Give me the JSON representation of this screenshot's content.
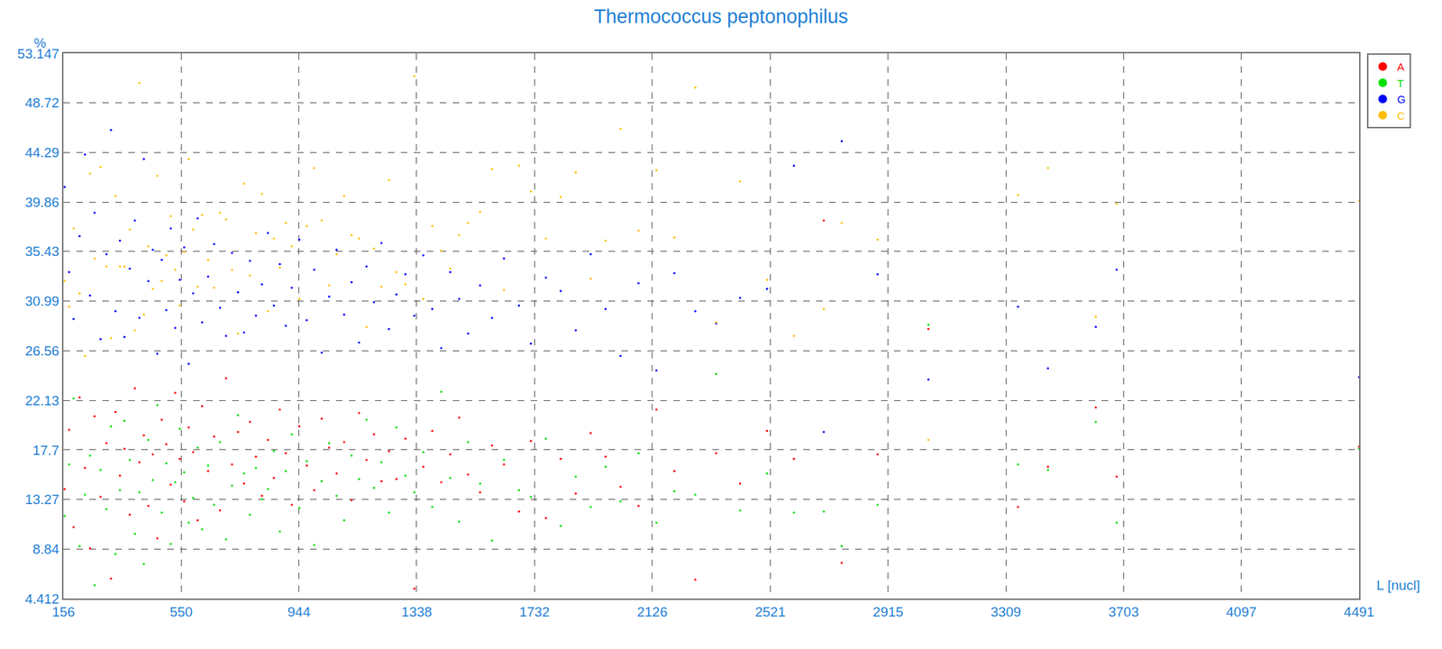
{
  "chart_data": {
    "type": "scatter",
    "title": "Thermococcus peptonophilus",
    "x_label": "L [nucl]",
    "y_label": "%",
    "xlim": [
      156,
      4491
    ],
    "ylim": [
      4.412,
      53.147
    ],
    "xticks": [
      156,
      550,
      944,
      1338,
      1732,
      2126,
      2521,
      2915,
      3309,
      3703,
      4097,
      4491
    ],
    "yticks": [
      4.412,
      8.84,
      13.27,
      17.7,
      22.13,
      26.56,
      30.99,
      35.43,
      39.86,
      44.29,
      48.72,
      53.147
    ],
    "grid": true,
    "legend": "right",
    "marker": "circle",
    "x": [
      160,
      175,
      190,
      210,
      228,
      245,
      260,
      280,
      300,
      315,
      330,
      345,
      360,
      378,
      395,
      410,
      425,
      440,
      455,
      470,
      485,
      500,
      515,
      530,
      545,
      560,
      575,
      590,
      605,
      620,
      640,
      660,
      680,
      700,
      720,
      740,
      760,
      780,
      800,
      820,
      840,
      860,
      880,
      900,
      920,
      945,
      970,
      995,
      1020,
      1045,
      1070,
      1095,
      1120,
      1145,
      1170,
      1195,
      1220,
      1245,
      1270,
      1300,
      1330,
      1360,
      1390,
      1420,
      1450,
      1480,
      1510,
      1550,
      1590,
      1630,
      1680,
      1720,
      1770,
      1820,
      1870,
      1920,
      1970,
      2020,
      2080,
      2140,
      2200,
      2270,
      2340,
      2420,
      2510,
      2600,
      2700,
      2760,
      2880,
      3050,
      3350,
      3450,
      3610,
      3680,
      4491
    ],
    "series": [
      {
        "name": "A",
        "color": "#ff0000",
        "values": [
          14.2,
          19.5,
          10.8,
          22.4,
          16.1,
          8.9,
          20.7,
          13.5,
          18.3,
          6.2,
          21.1,
          15.4,
          17.8,
          11.9,
          23.2,
          16.6,
          19.0,
          12.7,
          17.3,
          9.8,
          20.4,
          18.2,
          14.6,
          22.8,
          16.9,
          13.1,
          19.7,
          17.5,
          11.4,
          21.6,
          15.8,
          18.9,
          12.3,
          24.1,
          16.4,
          19.3,
          14.7,
          20.2,
          17.1,
          13.6,
          18.6,
          15.2,
          21.3,
          17.4,
          12.8,
          19.8,
          16.3,
          14.1,
          20.5,
          17.9,
          15.6,
          18.4,
          13.2,
          21.0,
          16.8,
          19.1,
          14.9,
          17.6,
          15.1,
          18.7,
          5.3,
          16.2,
          19.4,
          14.8,
          17.3,
          20.6,
          15.5,
          13.9,
          18.1,
          16.4,
          12.2,
          18.5,
          11.6,
          16.9,
          13.8,
          19.2,
          17.1,
          14.4,
          12.7,
          21.3,
          15.8,
          6.1,
          17.4,
          14.7,
          19.4,
          16.9,
          38.2,
          7.6,
          17.3,
          28.5,
          12.6,
          16.2,
          21.5,
          15.3,
          18.0
        ]
      },
      {
        "name": "T",
        "color": "#00e000",
        "values": [
          11.8,
          16.4,
          22.3,
          9.1,
          13.7,
          17.2,
          5.6,
          15.9,
          12.4,
          19.8,
          8.4,
          14.1,
          20.3,
          16.8,
          10.2,
          13.9,
          7.5,
          18.6,
          15.0,
          21.7,
          12.1,
          16.5,
          9.3,
          14.8,
          19.6,
          15.7,
          11.2,
          13.4,
          17.9,
          10.6,
          16.3,
          12.8,
          18.4,
          9.7,
          14.5,
          20.8,
          15.6,
          11.9,
          16.1,
          13.3,
          14.2,
          17.6,
          10.4,
          15.8,
          19.1,
          12.5,
          16.7,
          9.2,
          14.9,
          18.3,
          13.6,
          11.4,
          17.2,
          15.1,
          20.4,
          14.3,
          16.6,
          12.1,
          19.7,
          15.4,
          13.9,
          17.5,
          12.6,
          22.9,
          15.2,
          11.3,
          18.4,
          14.7,
          9.6,
          16.8,
          14.1,
          13.5,
          18.7,
          10.9,
          15.3,
          12.6,
          16.2,
          13.1,
          17.4,
          11.2,
          14.0,
          13.7,
          24.5,
          12.3,
          15.6,
          12.1,
          12.2,
          9.1,
          12.8,
          28.9,
          16.4,
          15.9,
          20.2,
          11.2,
          17.8
        ]
      },
      {
        "name": "G",
        "color": "#0000ff",
        "values": [
          41.2,
          33.6,
          29.4,
          36.8,
          44.1,
          31.5,
          38.9,
          27.6,
          35.2,
          46.3,
          30.1,
          36.4,
          27.8,
          33.9,
          38.2,
          29.5,
          43.7,
          32.8,
          35.6,
          26.3,
          34.7,
          30.2,
          37.5,
          28.6,
          32.9,
          35.8,
          25.4,
          31.7,
          38.4,
          29.1,
          33.2,
          36.1,
          30.4,
          27.9,
          35.3,
          31.8,
          28.2,
          34.6,
          29.7,
          32.5,
          37.1,
          30.6,
          34.3,
          28.8,
          32.2,
          36.5,
          29.3,
          33.8,
          26.4,
          31.4,
          35.6,
          29.8,
          32.7,
          27.3,
          34.1,
          30.9,
          36.2,
          28.5,
          31.6,
          33.4,
          29.7,
          35.1,
          30.3,
          26.8,
          33.6,
          31.2,
          28.1,
          32.4,
          29.5,
          34.8,
          30.6,
          27.2,
          33.1,
          31.9,
          28.4,
          35.2,
          30.3,
          26.1,
          32.6,
          24.8,
          33.5,
          30.1,
          29.0,
          31.3,
          32.1,
          43.1,
          19.3,
          45.3,
          33.4,
          24.0,
          30.5,
          25.0,
          28.7,
          33.8,
          24.2
        ]
      },
      {
        "name": "C",
        "color": "#ffbf00",
        "values": [
          32.8,
          30.5,
          37.5,
          31.7,
          26.1,
          42.4,
          34.8,
          43.0,
          34.1,
          27.7,
          40.4,
          34.1,
          34.1,
          37.4,
          28.4,
          50.5,
          29.8,
          35.9,
          32.1,
          42.2,
          32.8,
          35.1,
          38.6,
          33.8,
          30.6,
          35.4,
          43.7,
          37.4,
          32.3,
          38.7,
          34.7,
          32.2,
          38.9,
          38.3,
          33.8,
          28.1,
          41.5,
          33.3,
          37.1,
          40.6,
          30.1,
          36.6,
          34.0,
          38.0,
          35.9,
          31.2,
          37.7,
          42.9,
          38.2,
          32.4,
          35.2,
          40.4,
          36.9,
          36.6,
          28.7,
          35.7,
          32.3,
          41.8,
          33.6,
          32.5,
          51.1,
          31.2,
          37.7,
          35.5,
          33.9,
          36.9,
          38.0,
          39.0,
          42.8,
          32.0,
          43.1,
          40.8,
          36.6,
          40.3,
          42.5,
          33.0,
          36.4,
          46.4,
          37.3,
          42.7,
          36.7,
          50.1,
          29.1,
          41.7,
          32.9,
          27.9,
          30.3,
          38.0,
          36.5,
          18.6,
          40.5,
          42.9,
          29.6,
          39.7,
          40.0
        ]
      }
    ]
  }
}
